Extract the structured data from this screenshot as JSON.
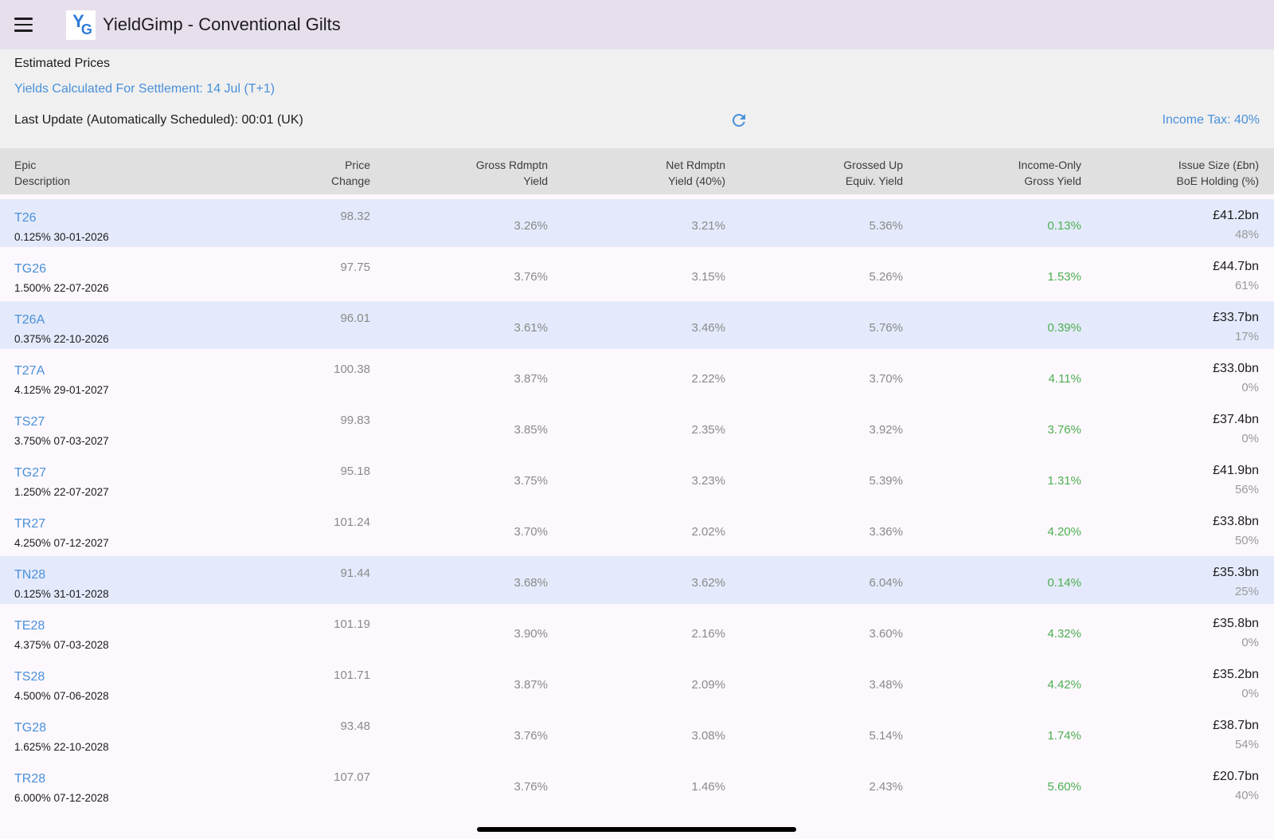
{
  "appbar": {
    "title": "YieldGimp - Conventional Gilts",
    "logo_text": "YG"
  },
  "info": {
    "estimated_label": "Estimated Prices",
    "settlement_text": "Yields Calculated For Settlement: 14 Jul (T+1)",
    "last_update_text": "Last Update (Automatically Scheduled): 00:01 (UK)",
    "income_tax_text": "Income Tax: 40%"
  },
  "table": {
    "headers": {
      "epic": "Epic",
      "description": "Description",
      "price": "Price",
      "change": "Change",
      "gross_rdmptn_1": "Gross Rdmptn",
      "gross_rdmptn_2": "Yield",
      "net_rdmptn_1": "Net Rdmptn",
      "net_rdmptn_2": "Yield (40%)",
      "grossed_up_1": "Grossed Up",
      "grossed_up_2": "Equiv. Yield",
      "income_only_1": "Income-Only",
      "income_only_2": "Gross Yield",
      "issue_size_1": "Issue Size (£bn)",
      "issue_size_2": "BoE Holding (%)"
    },
    "rows": [
      {
        "epic": "T26",
        "desc": "0.125% 30-01-2026",
        "price": "98.32",
        "gry": "3.26%",
        "nry": "3.21%",
        "guey": "5.36%",
        "ioy": "0.13%",
        "issue": "£41.2bn",
        "boe": "48%",
        "hl": true
      },
      {
        "epic": "TG26",
        "desc": "1.500% 22-07-2026",
        "price": "97.75",
        "gry": "3.76%",
        "nry": "3.15%",
        "guey": "5.26%",
        "ioy": "1.53%",
        "issue": "£44.7bn",
        "boe": "61%",
        "hl": false
      },
      {
        "epic": "T26A",
        "desc": "0.375% 22-10-2026",
        "price": "96.01",
        "gry": "3.61%",
        "nry": "3.46%",
        "guey": "5.76%",
        "ioy": "0.39%",
        "issue": "£33.7bn",
        "boe": "17%",
        "hl": true
      },
      {
        "epic": "T27A",
        "desc": "4.125% 29-01-2027",
        "price": "100.38",
        "gry": "3.87%",
        "nry": "2.22%",
        "guey": "3.70%",
        "ioy": "4.11%",
        "issue": "£33.0bn",
        "boe": "0%",
        "hl": false
      },
      {
        "epic": "TS27",
        "desc": "3.750% 07-03-2027",
        "price": "99.83",
        "gry": "3.85%",
        "nry": "2.35%",
        "guey": "3.92%",
        "ioy": "3.76%",
        "issue": "£37.4bn",
        "boe": "0%",
        "hl": false
      },
      {
        "epic": "TG27",
        "desc": "1.250% 22-07-2027",
        "price": "95.18",
        "gry": "3.75%",
        "nry": "3.23%",
        "guey": "5.39%",
        "ioy": "1.31%",
        "issue": "£41.9bn",
        "boe": "56%",
        "hl": false
      },
      {
        "epic": "TR27",
        "desc": "4.250% 07-12-2027",
        "price": "101.24",
        "gry": "3.70%",
        "nry": "2.02%",
        "guey": "3.36%",
        "ioy": "4.20%",
        "issue": "£33.8bn",
        "boe": "50%",
        "hl": false
      },
      {
        "epic": "TN28",
        "desc": "0.125% 31-01-2028",
        "price": "91.44",
        "gry": "3.68%",
        "nry": "3.62%",
        "guey": "6.04%",
        "ioy": "0.14%",
        "issue": "£35.3bn",
        "boe": "25%",
        "hl": true
      },
      {
        "epic": "TE28",
        "desc": "4.375% 07-03-2028",
        "price": "101.19",
        "gry": "3.90%",
        "nry": "2.16%",
        "guey": "3.60%",
        "ioy": "4.32%",
        "issue": "£35.8bn",
        "boe": "0%",
        "hl": false
      },
      {
        "epic": "TS28",
        "desc": "4.500% 07-06-2028",
        "price": "101.71",
        "gry": "3.87%",
        "nry": "2.09%",
        "guey": "3.48%",
        "ioy": "4.42%",
        "issue": "£35.2bn",
        "boe": "0%",
        "hl": false
      },
      {
        "epic": "TG28",
        "desc": "1.625% 22-10-2028",
        "price": "93.48",
        "gry": "3.76%",
        "nry": "3.08%",
        "guey": "5.14%",
        "ioy": "1.74%",
        "issue": "£38.7bn",
        "boe": "54%",
        "hl": false
      },
      {
        "epic": "TR28",
        "desc": "6.000% 07-12-2028",
        "price": "107.07",
        "gry": "3.76%",
        "nry": "1.46%",
        "guey": "2.43%",
        "ioy": "5.60%",
        "issue": "£20.7bn",
        "boe": "40%",
        "hl": false
      }
    ]
  },
  "colors": {
    "accent": "#4a90d9",
    "positive": "#4caf50",
    "highlight_row": "#e4eafb",
    "appbar": "#e7e0ec"
  }
}
